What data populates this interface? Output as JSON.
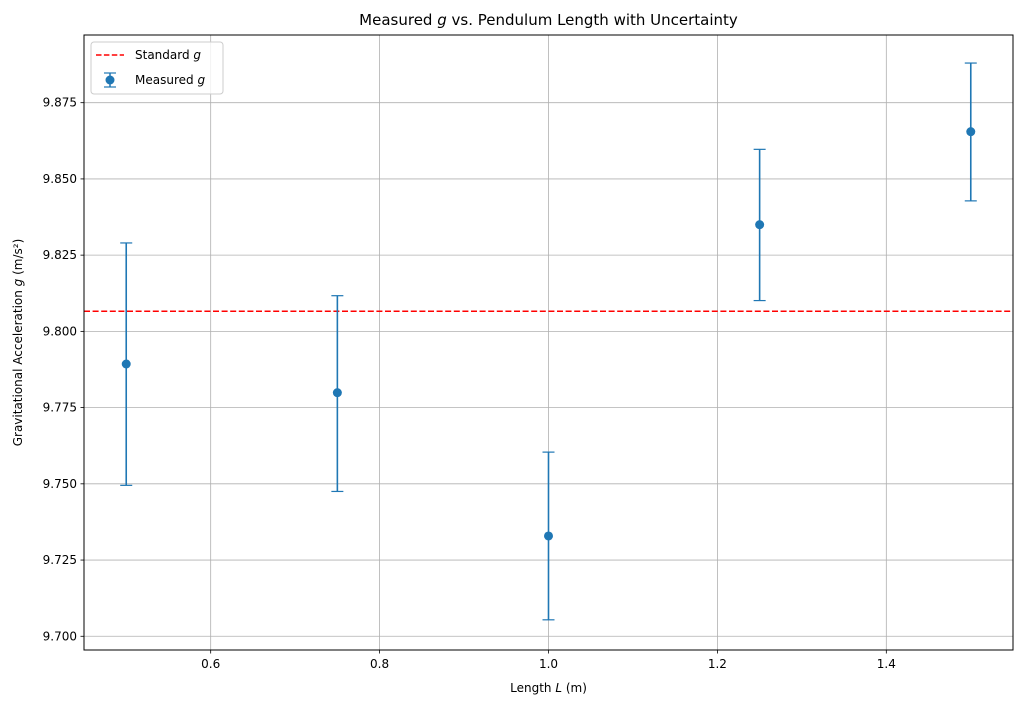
{
  "chart_data": {
    "type": "scatter",
    "title_parts": [
      "Measured ",
      "g",
      " vs. Pendulum Length with Uncertainty"
    ],
    "xlabel_parts": [
      "Length ",
      "L",
      " (m)"
    ],
    "ylabel_parts": [
      "Gravitational Acceleration ",
      "g",
      " (m/s²)"
    ],
    "xlim": [
      0.45,
      1.55
    ],
    "ylim": [
      9.6955,
      9.8972
    ],
    "xticks": [
      0.6,
      0.8,
      1.0,
      1.2,
      1.4
    ],
    "xtick_labels": [
      "0.6",
      "0.8",
      "1.0",
      "1.2",
      "1.4"
    ],
    "yticks": [
      9.7,
      9.725,
      9.75,
      9.775,
      9.8,
      9.825,
      9.85,
      9.875
    ],
    "ytick_labels": [
      "9.700",
      "9.725",
      "9.750",
      "9.775",
      "9.800",
      "9.825",
      "9.850",
      "9.875"
    ],
    "grid": true,
    "legend_position": "top-left",
    "series": [
      {
        "name_parts": [
          "Measured ",
          "g"
        ],
        "kind": "errorbar",
        "color": "#1f77b4",
        "x": [
          0.5,
          0.75,
          1.0,
          1.25,
          1.5
        ],
        "y": [
          9.7893,
          9.7799,
          9.7329,
          9.835,
          9.8655
        ],
        "yerr_low": [
          9.7495,
          9.7475,
          9.7054,
          9.8101,
          9.8428
        ],
        "yerr_high": [
          9.829,
          9.8117,
          9.7604,
          9.8597,
          9.888
        ]
      }
    ],
    "reference_lines": [
      {
        "name_parts": [
          "Standard ",
          "g"
        ],
        "kind": "hline",
        "y": 9.8066,
        "color": "#ff0000",
        "style": "dashed"
      }
    ]
  },
  "colors": {
    "grid": "#b0b0b0",
    "axes": "#000000",
    "background": "#ffffff"
  }
}
